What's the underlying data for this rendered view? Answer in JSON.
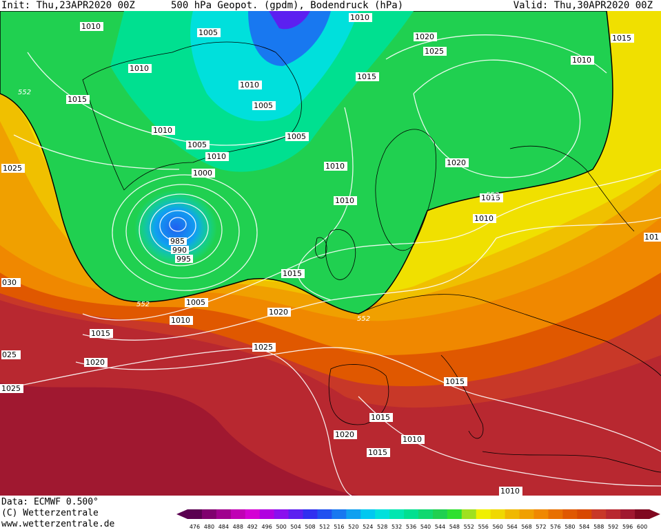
{
  "header": {
    "init": "Init: Thu,23APR2020 00Z",
    "title": "500 hPa Geopot. (gpdm), Bodendruck (hPa)",
    "valid": "Valid: Thu,30APR2020 00Z"
  },
  "footer": {
    "data": "Data: ECMWF  0.500°",
    "copyright": "(C) Wetterzentrale",
    "url": "www.wetterzentrale.de"
  },
  "colorbar": {
    "ticks": [
      "476",
      "480",
      "484",
      "488",
      "492",
      "496",
      "500",
      "504",
      "508",
      "512",
      "516",
      "520",
      "524",
      "528",
      "532",
      "536",
      "540",
      "544",
      "548",
      "552",
      "556",
      "560",
      "564",
      "568",
      "572",
      "576",
      "580",
      "584",
      "588",
      "592",
      "596",
      "600"
    ],
    "colors": [
      "#5a0050",
      "#80006e",
      "#a0008e",
      "#c000b4",
      "#d400d4",
      "#b000e0",
      "#8a10ee",
      "#5c20f0",
      "#3030f0",
      "#2050f0",
      "#1878f0",
      "#10a0f0",
      "#00c8f0",
      "#00e0dc",
      "#00e6b0",
      "#00e090",
      "#10d870",
      "#20d050",
      "#30e030",
      "#a0e020",
      "#f0f000",
      "#f0d800",
      "#f0b800",
      "#f0a000",
      "#f08800",
      "#e87000",
      "#e05800",
      "#d84800",
      "#c83828",
      "#b82830",
      "#a01830",
      "#800820"
    ]
  },
  "isobars": [
    {
      "text": "1010"
    },
    {
      "text": "1005"
    },
    {
      "text": "1010"
    },
    {
      "text": "1020"
    },
    {
      "text": "1025"
    },
    {
      "text": "1015"
    },
    {
      "text": "1010"
    },
    {
      "text": "1015"
    },
    {
      "text": "1010"
    },
    {
      "text": "1015"
    },
    {
      "text": "1005"
    },
    {
      "text": "1005"
    },
    {
      "text": "1010"
    },
    {
      "text": "1005"
    },
    {
      "text": "1010"
    },
    {
      "text": "1000"
    },
    {
      "text": "1025"
    },
    {
      "text": "1010"
    },
    {
      "text": "1020"
    },
    {
      "text": "1010"
    },
    {
      "text": "1015"
    },
    {
      "text": "1010"
    },
    {
      "text": "985"
    },
    {
      "text": "990"
    },
    {
      "text": "995"
    },
    {
      "text": "1010"
    },
    {
      "text": "1015"
    },
    {
      "text": "1005"
    },
    {
      "text": "1020"
    },
    {
      "text": "1010"
    },
    {
      "text": "1015"
    },
    {
      "text": "1025"
    },
    {
      "text": "1020"
    },
    {
      "text": "1025"
    },
    {
      "text": "1015"
    },
    {
      "text": "1015"
    },
    {
      "text": "1020"
    },
    {
      "text": "1010"
    },
    {
      "text": "1015"
    },
    {
      "text": "1010"
    },
    {
      "text": "030"
    },
    {
      "text": "025"
    },
    {
      "text": "101"
    }
  ],
  "contour_labels": [
    {
      "text": "552"
    },
    {
      "text": "552"
    },
    {
      "text": "552"
    },
    {
      "text": "552"
    }
  ]
}
